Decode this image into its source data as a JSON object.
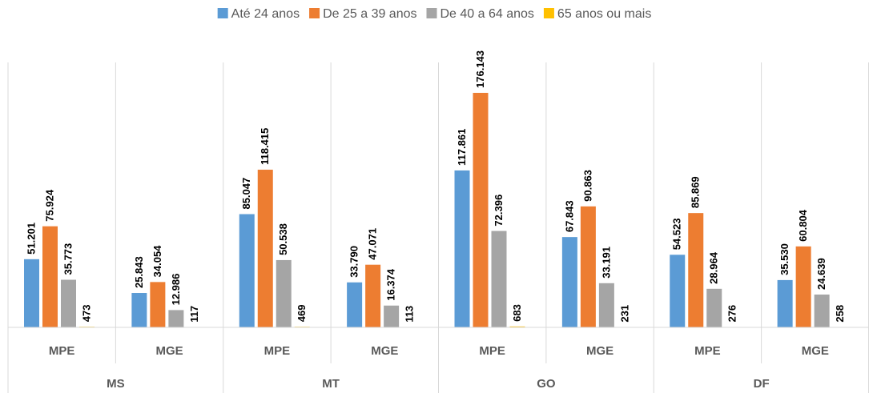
{
  "chart_data": {
    "type": "bar",
    "title": "",
    "xlabel": "",
    "ylabel": "",
    "ylim": [
      0,
      190000
    ],
    "grid": false,
    "legend_position": "top",
    "groups": [
      {
        "label": "MS",
        "categories": [
          "MPE",
          "MGE"
        ]
      },
      {
        "label": "MT",
        "categories": [
          "MPE",
          "MGE"
        ]
      },
      {
        "label": "GO",
        "categories": [
          "MPE",
          "MGE"
        ]
      },
      {
        "label": "DF",
        "categories": [
          "MPE",
          "MGE"
        ]
      }
    ],
    "series": [
      {
        "name": "Até 24 anos",
        "color": "#5b9bd5",
        "values": [
          51201,
          25843,
          85047,
          33790,
          117861,
          67843,
          54523,
          35530
        ],
        "labels": [
          "51.201",
          "25.843",
          "85.047",
          "33.790",
          "117.861",
          "67.843",
          "54.523",
          "35.530"
        ]
      },
      {
        "name": "De 25 a 39 anos",
        "color": "#ed7d31",
        "values": [
          75924,
          34054,
          118415,
          47071,
          176143,
          90863,
          85869,
          60804
        ],
        "labels": [
          "75.924",
          "34.054",
          "118.415",
          "47.071",
          "176.143",
          "90.863",
          "85.869",
          "60.804"
        ]
      },
      {
        "name": "De 40 a 64 anos",
        "color": "#a5a5a5",
        "values": [
          35773,
          12986,
          50538,
          16374,
          72396,
          33191,
          28964,
          24639
        ],
        "labels": [
          "35.773",
          "12.986",
          "50.538",
          "16.374",
          "72.396",
          "33.191",
          "28.964",
          "24.639"
        ]
      },
      {
        "name": "65 anos ou mais",
        "color": "#ffc000",
        "values": [
          473,
          117,
          469,
          113,
          683,
          231,
          276,
          258
        ],
        "labels": [
          "473",
          "117",
          "469",
          "113",
          "683",
          "231",
          "276",
          "258"
        ]
      }
    ]
  }
}
